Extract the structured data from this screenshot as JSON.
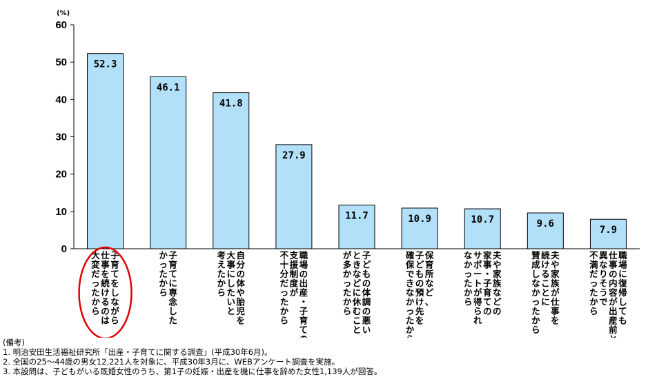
{
  "chart_data": {
    "type": "bar",
    "unit_label": "(%)",
    "ylim": [
      0,
      60
    ],
    "yticks": [
      "0",
      "10",
      "20",
      "30",
      "40",
      "50",
      "60"
    ],
    "categories": [
      "子育てをしながら\n仕事を続けるのは\n大変だったから",
      "子育てに専念した\nかったから",
      "自分の体や胎児を\n大事にしたいと\n考えたから",
      "職場の出産・子育ての\n支援制度が\n不十分だったから",
      "子どもの体調の悪い\nときなどに休むこと\nが多かったから",
      "保育所など、\n子どもの預け先を\n確保できなかったから",
      "夫や家族などの\n家事・子育ての\nサポートが得られ\nなかったから",
      "夫や家族が仕事を\n続けることに\n賛成しなかったから",
      "職場に復帰しても\n仕事の内容が出産前と\n異なりそうで\n不満だったから"
    ],
    "values": [
      52.3,
      46.1,
      41.8,
      27.9,
      11.7,
      10.9,
      10.7,
      9.6,
      7.9
    ],
    "value_labels": [
      "52.3",
      "46.1",
      "41.8",
      "27.9",
      "11.7",
      "10.9",
      "10.7",
      "9.6",
      "7.9"
    ],
    "bar_color": "#b3e0f9",
    "bar_border": "#000000",
    "highlight_color": "#e00000",
    "highlight_category_index": 0,
    "grid": false
  },
  "notes": {
    "heading": "(備考)",
    "lines": [
      "1. 明治安田生活福祉研究所「出産・子育てに関する調査」(平成30年6月)。",
      "2. 全国の25～44歳の男女12,221人を対象に、平成30年3月に、WEBアンケート調査を実施。",
      "3. 本設問は、子どもがいる既婚女性のうち、第1子の妊娠・出産を機に仕事を辞めた女性1,139人が回答。"
    ]
  }
}
